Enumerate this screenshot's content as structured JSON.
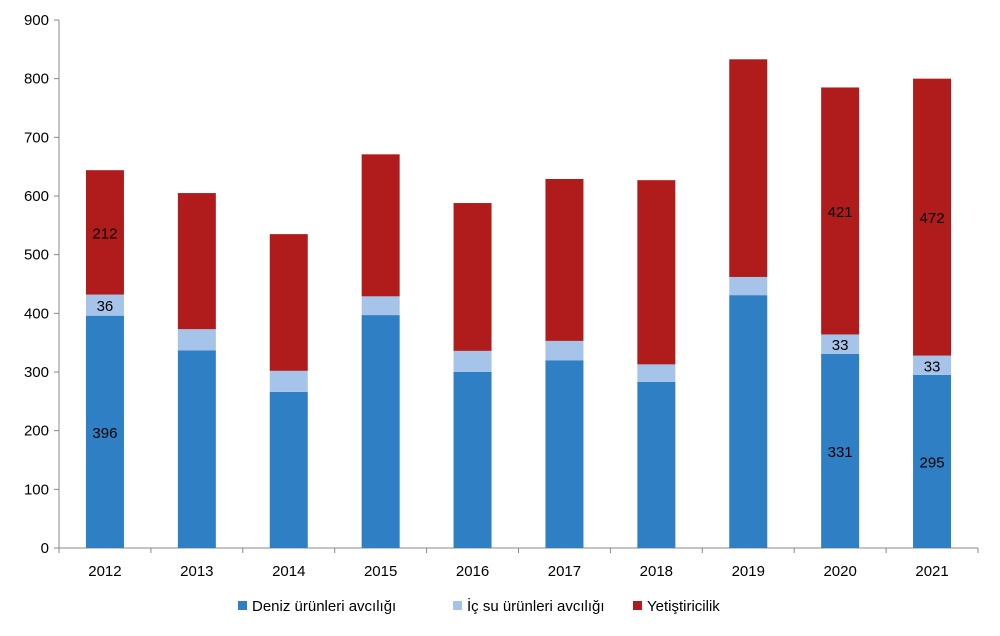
{
  "chart_data": {
    "type": "bar",
    "stacked": true,
    "title": "",
    "xlabel": "",
    "ylabel": "",
    "ylim": [
      0,
      900
    ],
    "yticks": [
      0,
      100,
      200,
      300,
      400,
      500,
      600,
      700,
      800,
      900
    ],
    "grid": false,
    "legend_position": "bottom",
    "categories": [
      "2012",
      "2013",
      "2014",
      "2015",
      "2016",
      "2017",
      "2018",
      "2019",
      "2020",
      "2021"
    ],
    "series": [
      {
        "name": "Deniz ürünleri avcılığı",
        "color": "#2e7fc4",
        "values": [
          396,
          337,
          266,
          397,
          300,
          320,
          283,
          431,
          331,
          295
        ],
        "labels": [
          "396",
          null,
          null,
          null,
          null,
          null,
          null,
          null,
          "331",
          "295"
        ]
      },
      {
        "name": "İç su ürünleri avcılığı",
        "color": "#a6c3ea",
        "values": [
          36,
          36,
          36,
          32,
          36,
          33,
          30,
          31,
          33,
          33
        ],
        "labels": [
          "36",
          null,
          null,
          null,
          null,
          null,
          null,
          null,
          "33",
          "33"
        ]
      },
      {
        "name": "Yetiştiricilik",
        "color": "#b01c1c",
        "values": [
          212,
          232,
          233,
          242,
          252,
          276,
          314,
          371,
          421,
          472
        ],
        "labels": [
          "212",
          null,
          null,
          null,
          null,
          null,
          null,
          null,
          "421",
          "472"
        ]
      }
    ]
  }
}
